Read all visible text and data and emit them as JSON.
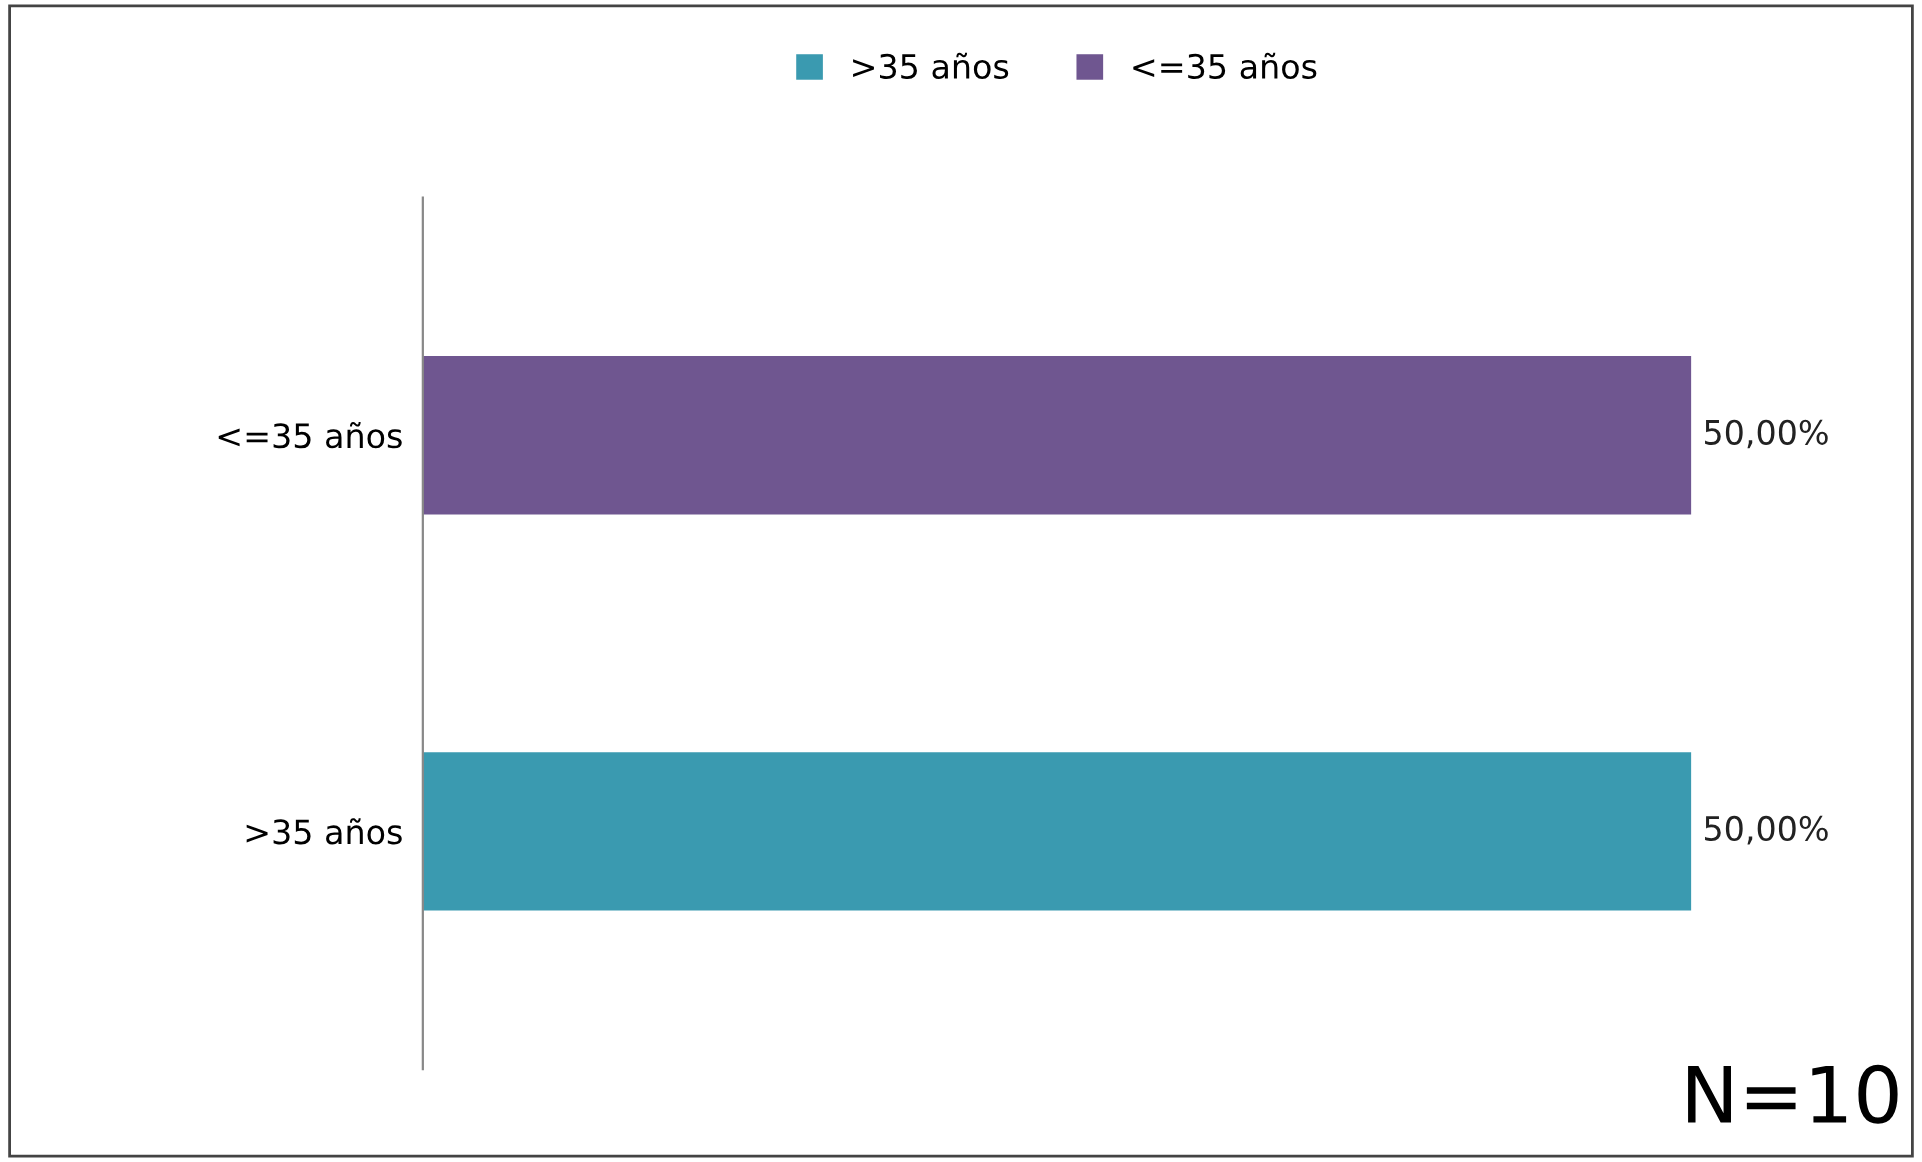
{
  "chart_data": {
    "type": "bar",
    "orientation": "horizontal",
    "categories": [
      "<=35 años",
      ">35 años"
    ],
    "series": [
      {
        "name": ">35 años",
        "color": "#3a9ab0",
        "values": [
          null,
          50
        ],
        "value_labels": [
          null,
          "50,00%"
        ]
      },
      {
        "name": "<=35 años",
        "color": "#6f5690",
        "values": [
          50,
          null
        ],
        "value_labels": [
          "50,00%",
          null
        ]
      }
    ],
    "legend": "top",
    "grid": false,
    "tick_labels": "y",
    "annotations": [
      "N=10"
    ]
  }
}
